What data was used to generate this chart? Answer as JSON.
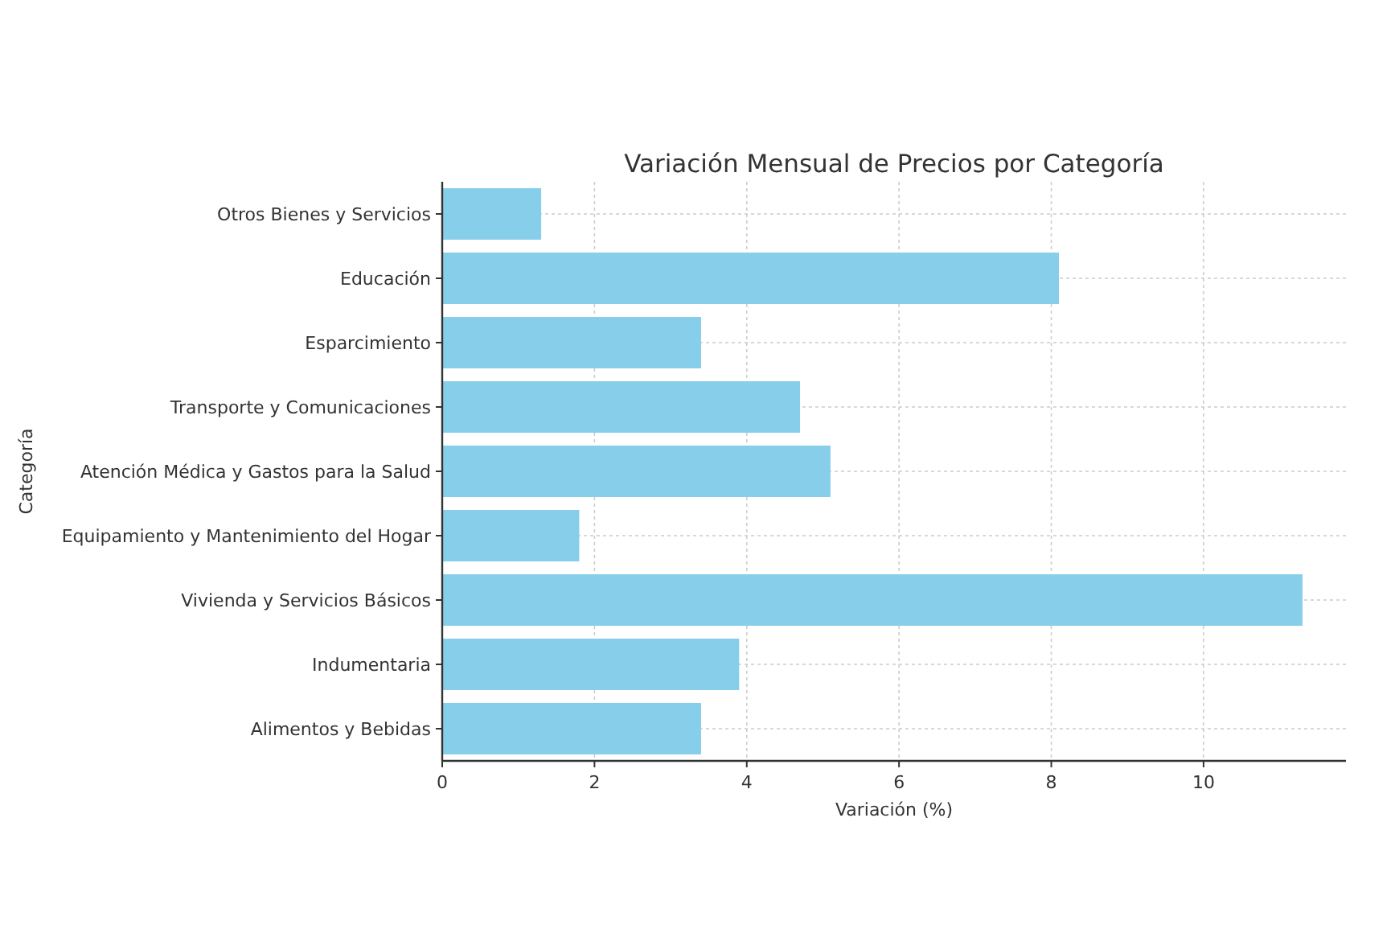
{
  "chart_data": {
    "type": "bar",
    "orientation": "horizontal",
    "title": "Variación Mensual de Precios por Categoría",
    "xlabel": "Variación (%)",
    "ylabel": "Categoría",
    "categories": [
      "Otros Bienes y Servicios",
      "Educación",
      "Esparcimiento",
      "Transporte y Comunicaciones",
      "Atención Médica y Gastos para la Salud",
      "Equipamiento y Mantenimiento del Hogar",
      "Vivienda y Servicios Básicos",
      "Indumentaria",
      "Alimentos y Bebidas"
    ],
    "values": [
      1.3,
      8.1,
      3.4,
      4.7,
      5.1,
      1.8,
      11.3,
      3.9,
      3.4
    ],
    "color": "#87ceeb",
    "xlim": [
      0,
      11.87
    ],
    "xticks": [
      0,
      2,
      4,
      6,
      8,
      10
    ],
    "grid": true
  }
}
